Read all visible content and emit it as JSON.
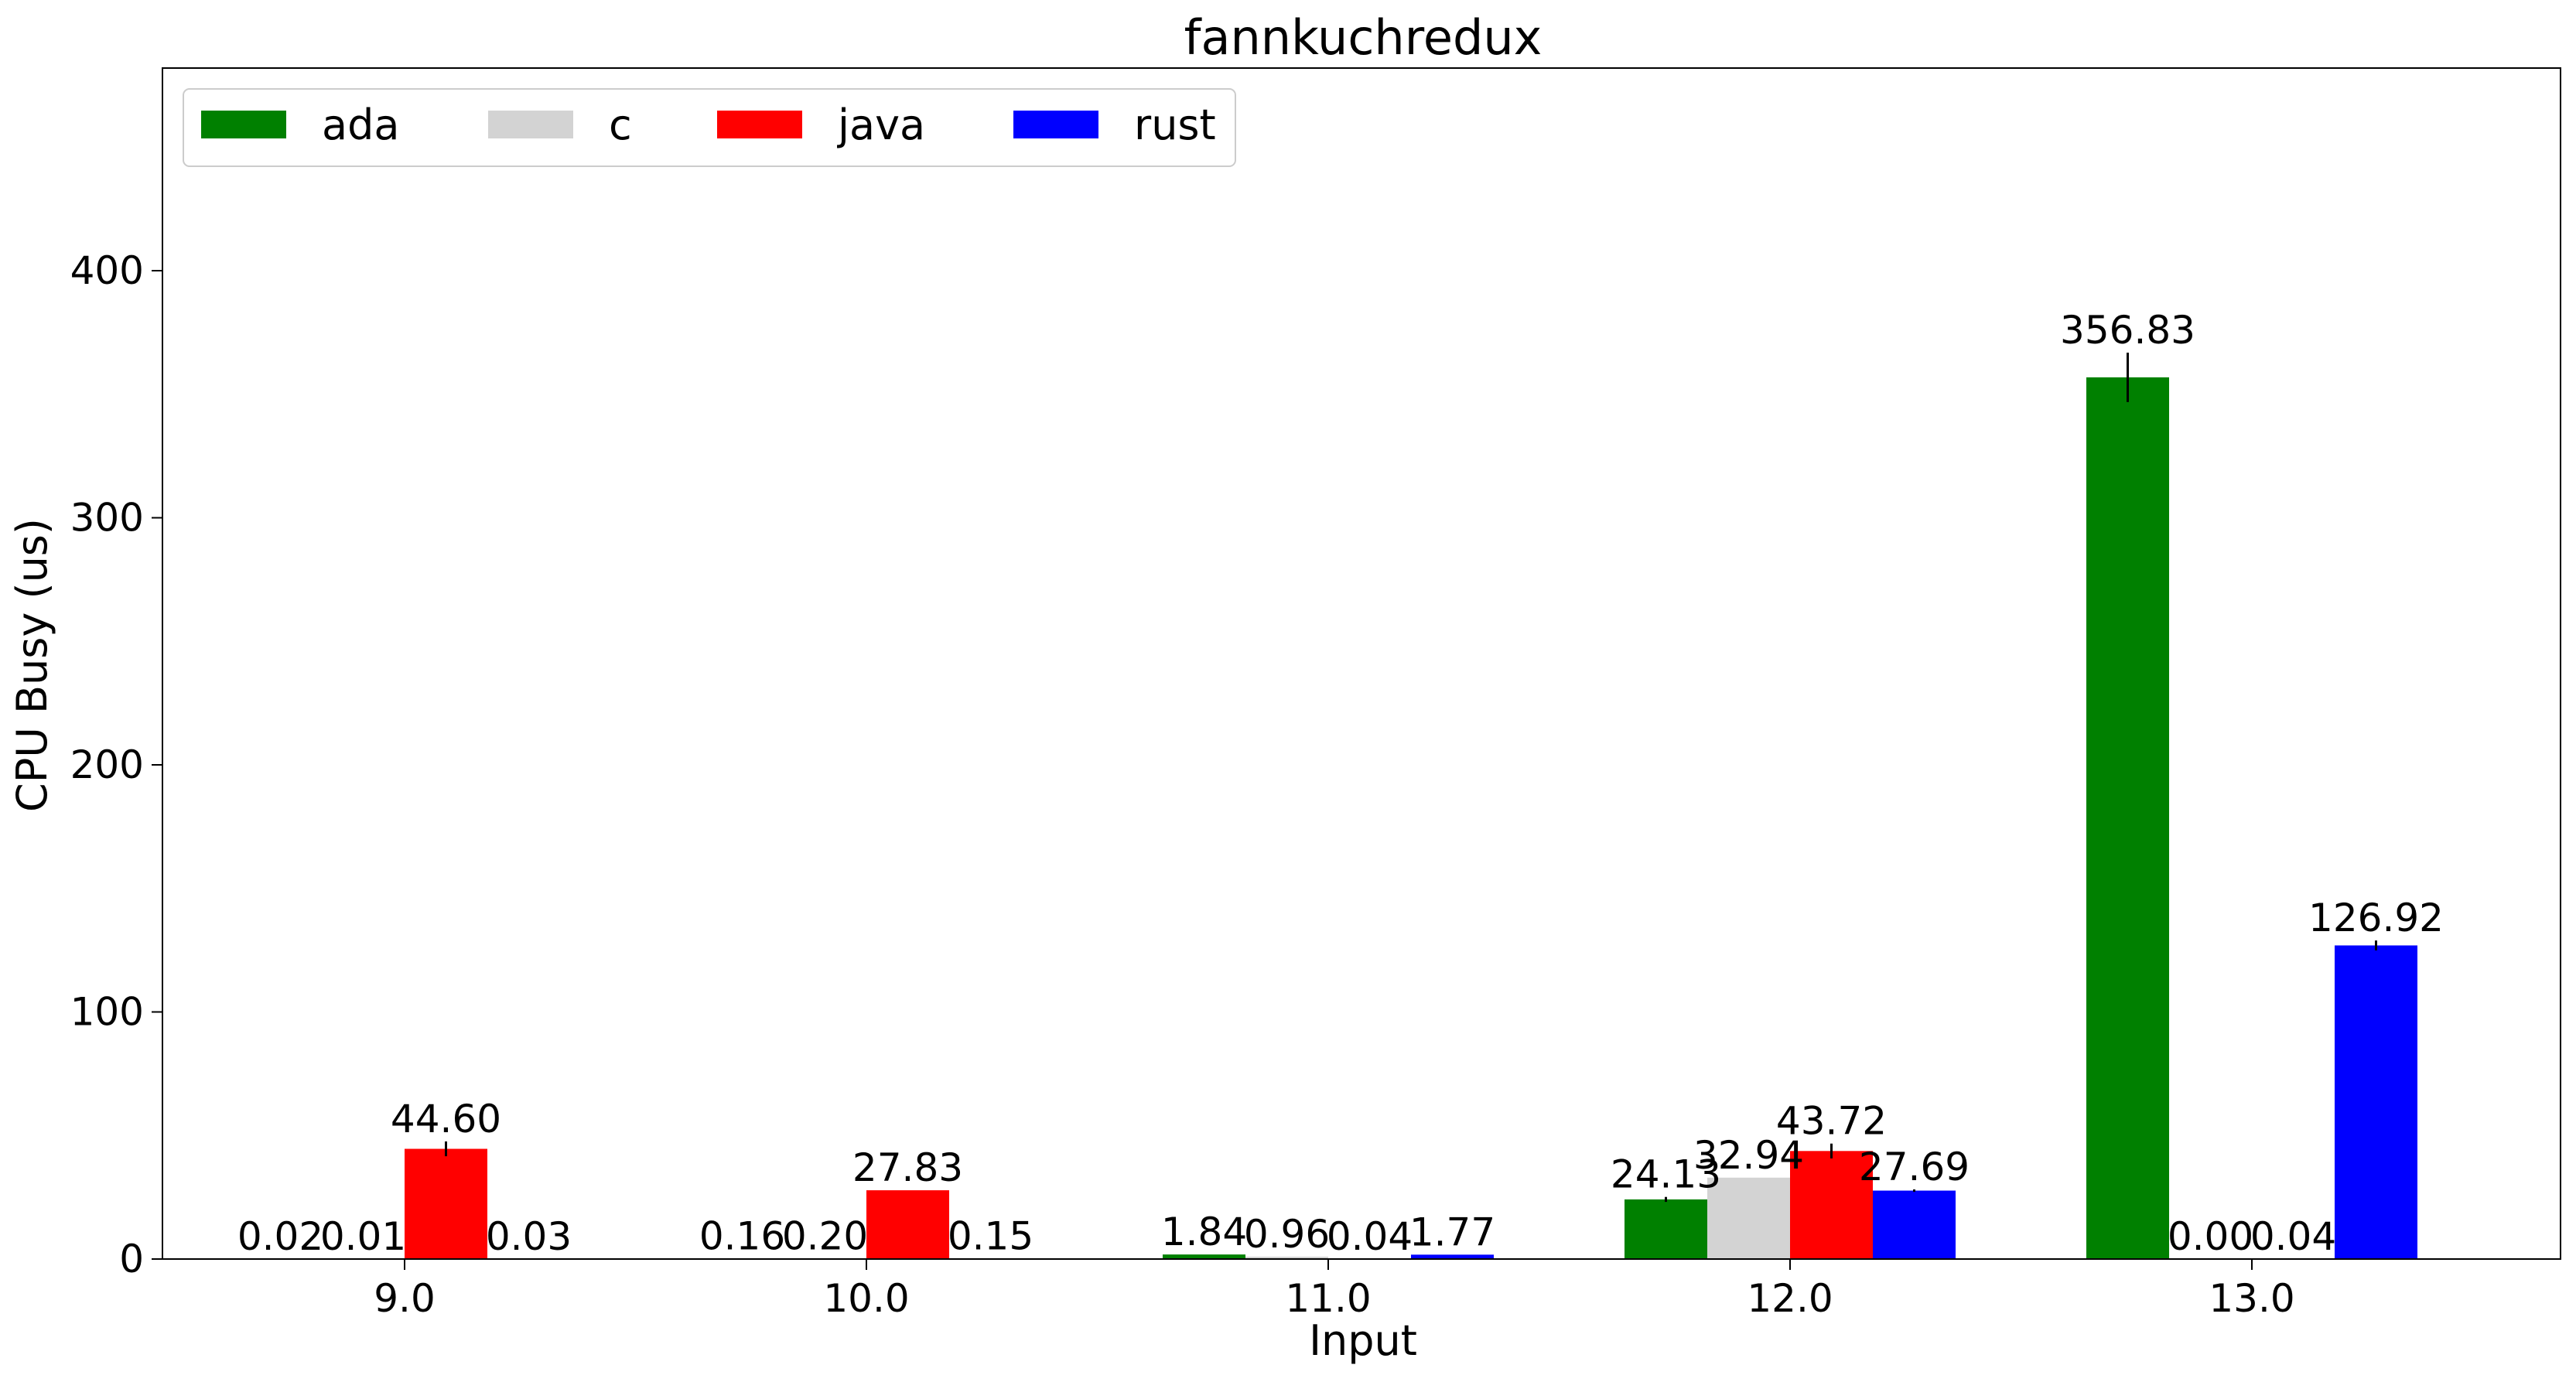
{
  "chart_data": {
    "type": "bar",
    "title": "fannkuchredux",
    "xlabel": "Input",
    "ylabel": "CPU Busy (us)",
    "categories": [
      "9.0",
      "10.0",
      "11.0",
      "12.0",
      "13.0"
    ],
    "ylim": [
      0,
      482
    ],
    "yticks": [
      0,
      100,
      200,
      300,
      400
    ],
    "legend_position": "upper-left",
    "grid": false,
    "series": [
      {
        "name": "ada",
        "color": "#008000",
        "values": [
          0.02,
          0.16,
          1.84,
          24.13,
          356.83
        ],
        "labels": [
          "0.02",
          "0.16",
          "1.84",
          "24.13",
          "356.83"
        ],
        "errors": [
          0,
          0,
          0,
          1.0,
          10.0
        ]
      },
      {
        "name": "c",
        "color": "#d3d3d3",
        "values": [
          0.01,
          0.2,
          0.96,
          32.94,
          0.0
        ],
        "labels": [
          "0.01",
          "0.20",
          "0.96",
          "32.94",
          "0.00"
        ],
        "errors": [
          0,
          0,
          0,
          0,
          0
        ]
      },
      {
        "name": "java",
        "color": "#ff0000",
        "values": [
          44.6,
          27.83,
          0.04,
          43.72,
          0.04
        ],
        "labels": [
          "44.60",
          "27.83",
          "0.04",
          "43.72",
          "0.04"
        ],
        "errors": [
          3.0,
          0,
          0,
          3.0,
          0
        ]
      },
      {
        "name": "rust",
        "color": "#0000ff",
        "values": [
          0.03,
          0.15,
          1.77,
          27.69,
          126.92
        ],
        "labels": [
          "0.03",
          "0.15",
          "1.77",
          "27.69",
          "126.92"
        ],
        "errors": [
          0,
          0,
          0,
          0.5,
          2.0
        ]
      }
    ]
  }
}
